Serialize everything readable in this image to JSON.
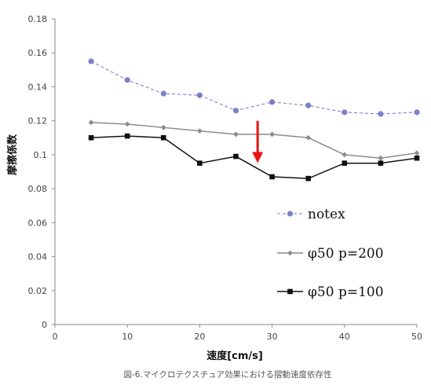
{
  "figure": {
    "caption": "図-6.マイクロテクスチュア効果における摺動速度依存性"
  },
  "chart_data": {
    "type": "line",
    "xlabel": "速度[cm/s]",
    "ylabel": "摩擦係数",
    "xlim": [
      0,
      50
    ],
    "ylim": [
      0,
      0.18
    ],
    "x_ticks": [
      "0",
      "10",
      "20",
      "30",
      "40",
      "50"
    ],
    "y_ticks": [
      "0",
      "0.02",
      "0.04",
      "0.06",
      "0.08",
      "0.1",
      "0.12",
      "0.14",
      "0.16",
      "0.18"
    ],
    "grid": false,
    "legend_position": "lower-right inside plot",
    "x": [
      5,
      10,
      15,
      20,
      25,
      30,
      35,
      40,
      45,
      50
    ],
    "series": [
      {
        "name": "notex",
        "values": [
          0.155,
          0.144,
          0.136,
          0.135,
          0.126,
          0.131,
          0.129,
          0.125,
          0.124,
          0.125
        ],
        "color": "#7b7fcc",
        "marker": "circle",
        "dashed": true
      },
      {
        "name": "φ50 p=200",
        "values": [
          0.119,
          0.118,
          0.116,
          0.114,
          0.112,
          0.112,
          0.11,
          0.1,
          0.098,
          0.101
        ],
        "color": "#8c8c8c",
        "marker": "diamond",
        "dashed": false
      },
      {
        "name": "φ50 p=100",
        "values": [
          0.11,
          0.111,
          0.11,
          0.095,
          0.099,
          0.087,
          0.086,
          0.095,
          0.095,
          0.098
        ],
        "color": "#111111",
        "marker": "square",
        "dashed": false
      }
    ],
    "annotation": {
      "type": "arrow-down",
      "color": "#ee1111",
      "x": 28,
      "y_start": 0.12,
      "y_end": 0.096
    }
  }
}
